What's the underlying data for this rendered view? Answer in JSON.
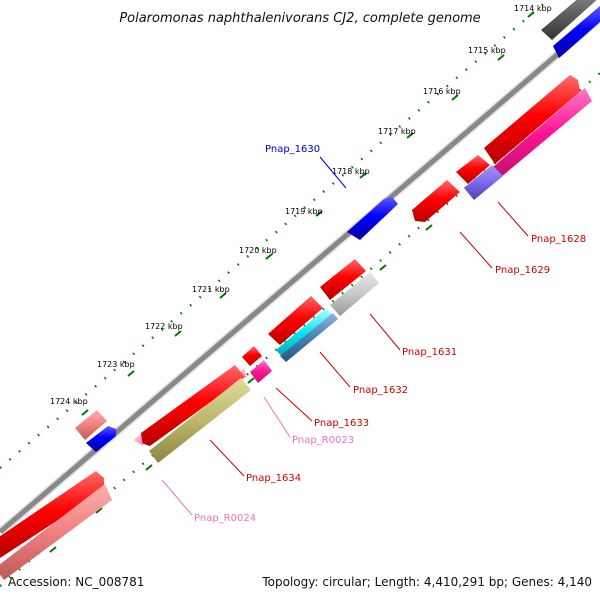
{
  "title": "Polaromonas naphthalenivorans CJ2, complete genome",
  "footer": {
    "accession": "Accession: NC_008781",
    "summary": "Topology: circular; Length: 4,410,291 bp; Genes: 4,140"
  },
  "ticks": [
    "1714 kbp",
    "1715 kbp",
    "1716 kbp",
    "1717 kbp",
    "1718 kbp",
    "1719 kbp",
    "1720 kbp",
    "1721 kbp",
    "1722 kbp",
    "1723 kbp",
    "1724 kbp"
  ],
  "genes": {
    "pnap_1628": "Pnap_1628",
    "pnap_1629": "Pnap_1629",
    "pnap_1630": "Pnap_1630",
    "pnap_1631": "Pnap_1631",
    "pnap_1632": "Pnap_1632",
    "pnap_1633": "Pnap_1633",
    "pnap_r0023": "Pnap_R0023",
    "pnap_1634": "Pnap_1634",
    "pnap_r0024": "Pnap_R0024"
  },
  "colors": {
    "cds": "#ff0000",
    "cds_light": "#f08080",
    "trna": "#ff99cc",
    "label_red": "#cc0000",
    "label_blue": "#0000cc",
    "label_pink": "#ee77aa",
    "backbone": "#888888",
    "tick_green": "#007700"
  }
}
